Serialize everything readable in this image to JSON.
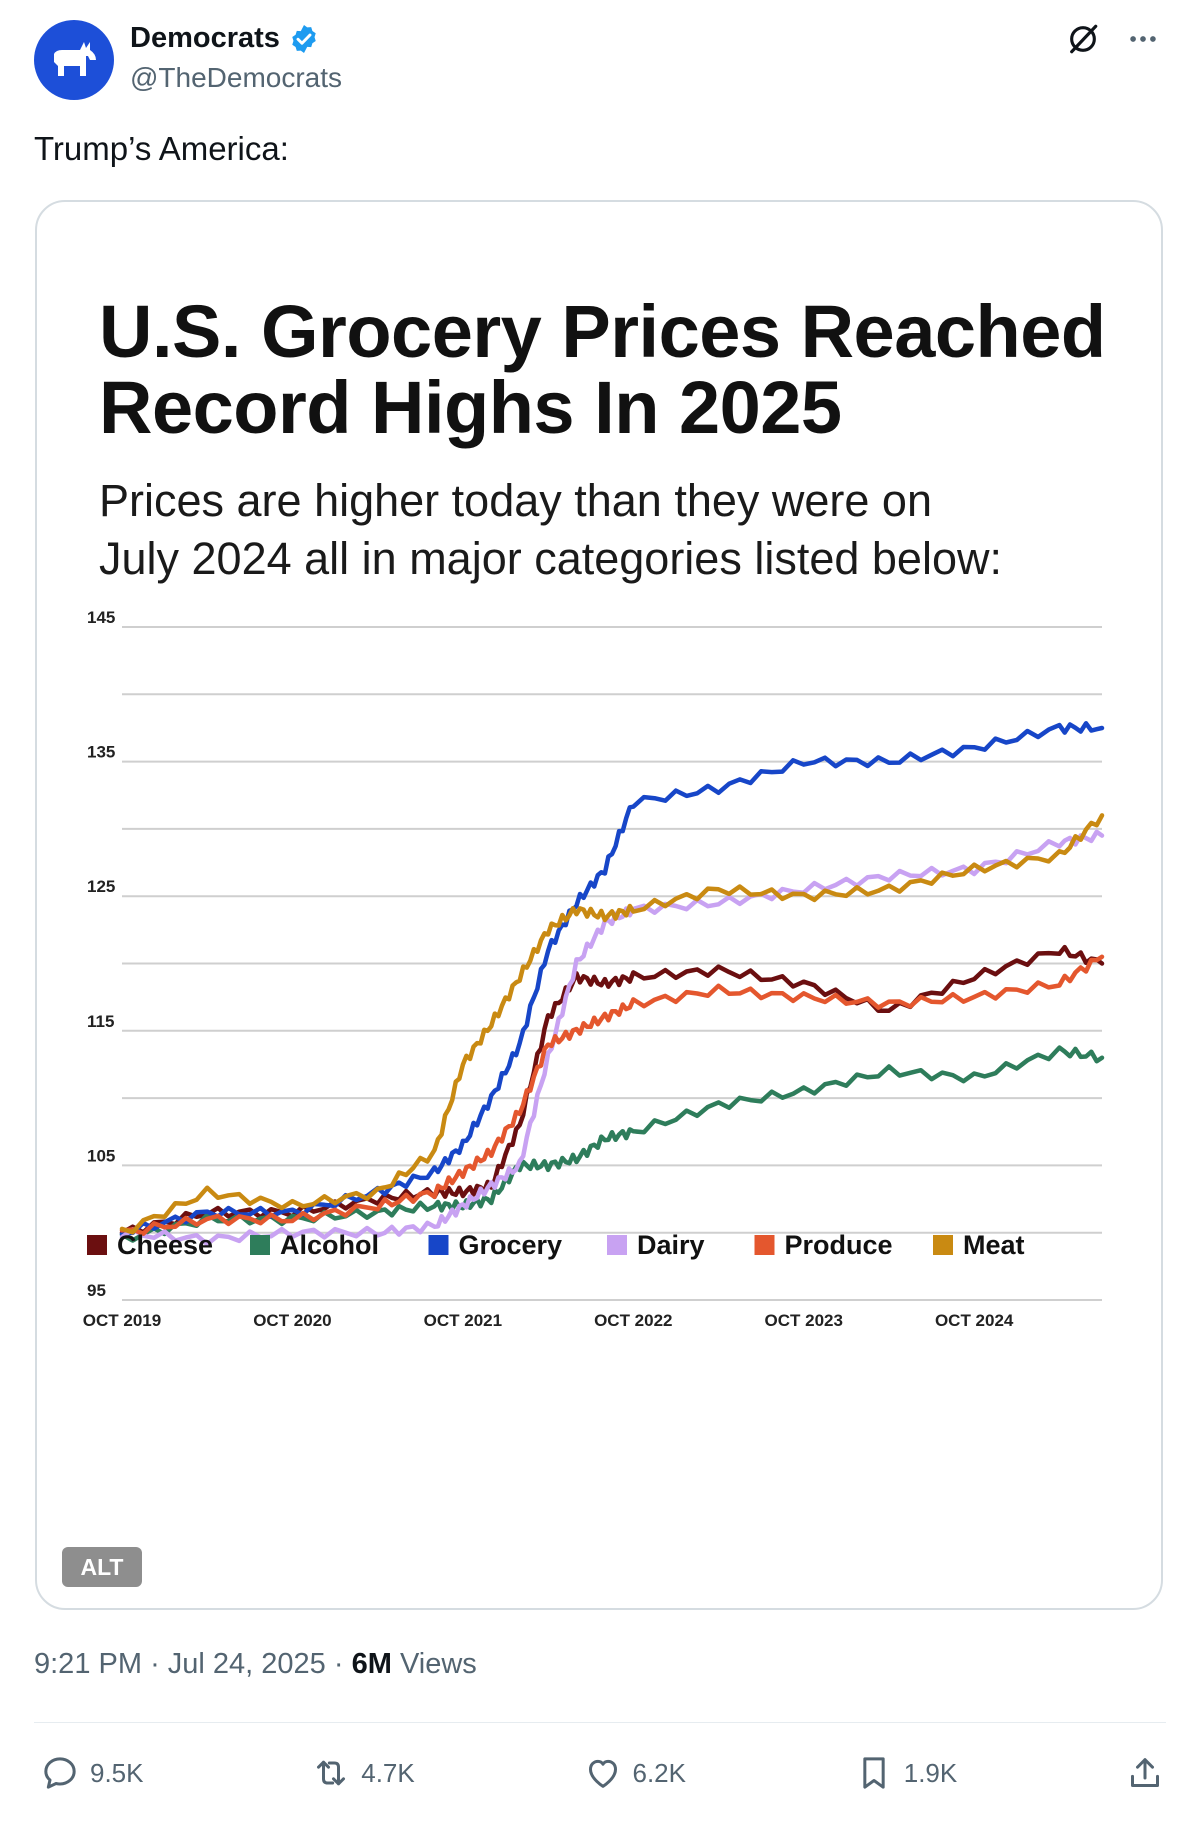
{
  "author": {
    "name": "Democrats",
    "handle": "@TheDemocrats",
    "verified": true,
    "avatar_icon": "donkey-icon",
    "avatar_color": "#1d4fd8"
  },
  "tweet_text": "Trump’s America:",
  "image": {
    "title_line1": "U.S. Grocery Prices Reached",
    "title_line2": "Record Highs In 2025",
    "subtitle_line1": "Prices are higher today than they were on",
    "subtitle_line2": "July 2024 all in major categories listed below:",
    "alt_badge": "ALT"
  },
  "chart_data": {
    "type": "line",
    "title": "U.S. Grocery Prices Reached Record Highs In 2025",
    "y_ticks": [
      "145",
      "135",
      "125",
      "115",
      "105",
      "95"
    ],
    "x_ticks": [
      "OCT 2019",
      "OCT 2020",
      "OCT 2021",
      "OCT 2022",
      "OCT 2023",
      "OCT 2024"
    ],
    "ylim": [
      95,
      145
    ],
    "xlim": [
      "2019-10",
      "2025-07"
    ],
    "grid": true,
    "legend_position": "bottom",
    "x": [
      "2019-10",
      "2020-04",
      "2020-10",
      "2021-04",
      "2021-08",
      "2021-10",
      "2021-12",
      "2022-02",
      "2022-04",
      "2022-06",
      "2022-08",
      "2022-10",
      "2023-04",
      "2023-10",
      "2024-04",
      "2024-10",
      "2025-04",
      "2025-07"
    ],
    "series": [
      {
        "name": "Cheese",
        "color": "#6b0f10",
        "values": [
          100,
          101.5,
          101.5,
          102.5,
          103,
          103,
          103.5,
          108,
          116,
          119,
          118.5,
          119,
          119.5,
          118.5,
          116.5,
          119,
          121,
          120
        ]
      },
      {
        "name": "Alcohol",
        "color": "#2e7d5b",
        "values": [
          99.5,
          101,
          101,
          101.5,
          102,
          102,
          102.5,
          105,
          105,
          105.5,
          107,
          107.5,
          109.5,
          110.5,
          112,
          111.5,
          113.5,
          113
        ]
      },
      {
        "name": "Grocery",
        "color": "#1746c8",
        "values": [
          100,
          101.5,
          101.5,
          103,
          104.5,
          106.5,
          110,
          114,
          121,
          124.5,
          127,
          132,
          133,
          135,
          135,
          136,
          137.5,
          137.5
        ]
      },
      {
        "name": "Dairy",
        "color": "#c8a2f2",
        "values": [
          100,
          99.5,
          100,
          100,
          100.5,
          102,
          103.5,
          105,
          113,
          120,
          123,
          124,
          124.5,
          125.5,
          126.5,
          127,
          129,
          129.5
        ]
      },
      {
        "name": "Produce",
        "color": "#e4572e",
        "values": [
          100,
          101,
          101,
          102,
          103,
          104.5,
          106,
          109,
          114,
          115,
          116,
          117,
          118,
          117.5,
          117,
          117.5,
          118.5,
          120.5
        ]
      },
      {
        "name": "Meat",
        "color": "#c98a12",
        "values": [
          100,
          103,
          102,
          103,
          106,
          112.5,
          115.5,
          119,
          122.5,
          124,
          123.5,
          124,
          125.5,
          125,
          125.5,
          127,
          128,
          131
        ]
      }
    ]
  },
  "meta": {
    "time": "9:21 PM",
    "date": "Jul 24, 2025",
    "views_count": "6M",
    "views_label": "Views"
  },
  "actions": {
    "replies": "9.5K",
    "reposts": "4.7K",
    "likes": "6.2K",
    "bookmarks": "1.9K"
  },
  "colors": {
    "verified_badge": "#1d9bf0",
    "secondary_text": "#536471"
  }
}
